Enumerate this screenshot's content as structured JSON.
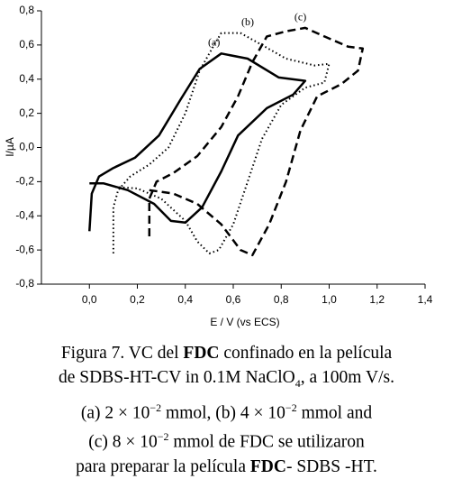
{
  "chart_data": {
    "type": "line",
    "xlabel": "E / V (vs ECS)",
    "ylabel": "I/µA",
    "xlim": [
      -0.2,
      1.4
    ],
    "ylim": [
      -0.8,
      0.8
    ],
    "xticks": [
      {
        "value": 0,
        "label": "0,0"
      },
      {
        "value": 0.2,
        "label": "0,2"
      },
      {
        "value": 0.4,
        "label": "0,4"
      },
      {
        "value": 0.6,
        "label": "0,6"
      },
      {
        "value": 0.8,
        "label": "0,8"
      },
      {
        "value": 1.0,
        "label": "1,0"
      },
      {
        "value": 1.2,
        "label": "1,2"
      },
      {
        "value": 1.4,
        "label": "1,4"
      }
    ],
    "yticks": [
      {
        "value": 0.8,
        "label": "0,8"
      },
      {
        "value": 0.6,
        "label": "0,6"
      },
      {
        "value": 0.4,
        "label": "0,4"
      },
      {
        "value": 0.2,
        "label": "0,2"
      },
      {
        "value": 0,
        "label": "0,0"
      },
      {
        "value": -0.2,
        "label": "-0,2"
      },
      {
        "value": -0.4,
        "label": "-0,4"
      },
      {
        "value": -0.6,
        "label": "-0,6"
      },
      {
        "value": -0.8,
        "label": "-0,8"
      }
    ],
    "series": [
      {
        "name": "(a)",
        "color": "#000000",
        "line_style": "solid",
        "x": [
          0,
          0.01,
          0.04,
          0.1,
          0.19,
          0.29,
          0.38,
          0.46,
          0.55,
          0.66,
          0.79,
          0.9,
          0.85,
          0.74,
          0.62,
          0.55,
          0.47,
          0.4,
          0.34,
          0.27,
          0.16,
          0.06,
          0
        ],
        "y": [
          -0.49,
          -0.27,
          -0.17,
          -0.12,
          -0.06,
          0.07,
          0.28,
          0.46,
          0.55,
          0.52,
          0.41,
          0.39,
          0.31,
          0.23,
          0.07,
          -0.14,
          -0.35,
          -0.44,
          -0.43,
          -0.33,
          -0.25,
          -0.21,
          -0.21
        ]
      },
      {
        "name": "(b)",
        "color": "#000000",
        "line_style": "dotted",
        "x": [
          0.1,
          0.1,
          0.12,
          0.17,
          0.25,
          0.33,
          0.4,
          0.46,
          0.52,
          0.55,
          0.63,
          0.72,
          0.82,
          0.94,
          1.0,
          0.98,
          0.9,
          0.8,
          0.72,
          0.66,
          0.6,
          0.54,
          0.5,
          0.45,
          0.4,
          0.3,
          0.2,
          0.1
        ],
        "y": [
          -0.62,
          -0.35,
          -0.25,
          -0.17,
          -0.1,
          0.0,
          0.2,
          0.45,
          0.6,
          0.67,
          0.67,
          0.6,
          0.52,
          0.48,
          0.49,
          0.38,
          0.35,
          0.25,
          0.05,
          -0.2,
          -0.45,
          -0.6,
          -0.62,
          -0.55,
          -0.43,
          -0.3,
          -0.24,
          -0.23
        ]
      },
      {
        "name": "(c)",
        "color": "#000000",
        "line_style": "dashed",
        "x": [
          0.25,
          0.25,
          0.28,
          0.35,
          0.45,
          0.55,
          0.62,
          0.68,
          0.74,
          0.82,
          0.9,
          0.98,
          1.08,
          1.14,
          1.12,
          1.05,
          0.95,
          0.88,
          0.82,
          0.75,
          0.68,
          0.63,
          0.55,
          0.45,
          0.35,
          0.25
        ],
        "y": [
          -0.52,
          -0.3,
          -0.2,
          -0.15,
          -0.05,
          0.12,
          0.3,
          0.5,
          0.65,
          0.68,
          0.7,
          0.65,
          0.59,
          0.58,
          0.45,
          0.37,
          0.3,
          0.1,
          -0.2,
          -0.45,
          -0.63,
          -0.6,
          -0.45,
          -0.33,
          -0.27,
          -0.25
        ]
      }
    ]
  },
  "caption": {
    "lines": [
      [
        "Figura 7. VC del ",
        {
          "text": "FDC",
          "style": "bold"
        },
        " confinado en la película"
      ],
      [
        "de SDBS-HT-CV in 0.1M NaClO",
        {
          "text": "4",
          "style": "sub"
        },
        ", a 100m V/s."
      ],
      [
        "(a) 2 × 10",
        {
          "text": "−2",
          "style": "sup"
        },
        " mmol, (b) 4 × 10",
        {
          "text": "−2",
          "style": "sup"
        },
        " mmol and"
      ],
      [
        "(c) 8 × 10",
        {
          "text": "−2",
          "style": "sup"
        },
        " mmol de FDC se utilizaron"
      ],
      [
        "para preparar la película ",
        {
          "text": "FDC",
          "style": "bold"
        },
        "- SDBS -HT."
      ]
    ]
  }
}
